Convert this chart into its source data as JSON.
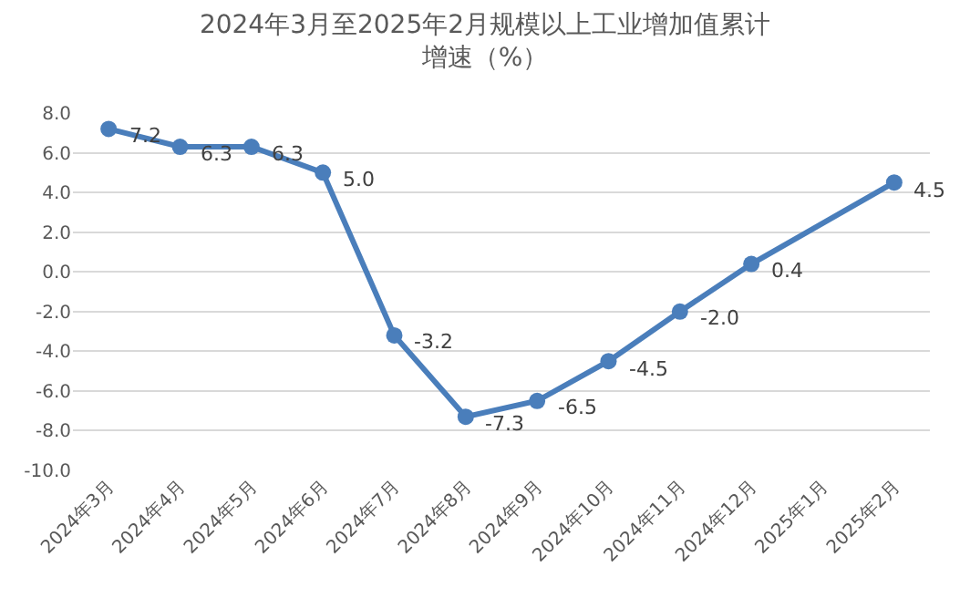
{
  "chart_data": {
    "type": "line",
    "title": "2024年3月至2025年2月规模以上工业增加值累计增速（%）",
    "categories": [
      "2024年3月",
      "2024年4月",
      "2024年5月",
      "2024年6月",
      "2024年7月",
      "2024年8月",
      "2024年9月",
      "2024年10月",
      "2024年11月",
      "2024年12月",
      "2025年1月",
      "2025年2月"
    ],
    "series": [
      {
        "color": "#4a7ebb",
        "values": [
          7.2,
          6.3,
          6.3,
          5.0,
          -3.2,
          -7.3,
          -6.5,
          -4.5,
          -2.0,
          0.4,
          null,
          4.5
        ],
        "value_labels": [
          "7.2",
          "6.3",
          "6.3",
          "5.0",
          "-3.2",
          "-7.3",
          "-6.5",
          "-4.5",
          "-2.0",
          "0.4",
          null,
          "4.5"
        ]
      }
    ],
    "ylim": [
      -10,
      8
    ],
    "yticks": [
      {
        "value": -10,
        "label": "-10.0"
      },
      {
        "value": -8,
        "label": "-8.0"
      },
      {
        "value": -6,
        "label": "-6.0"
      },
      {
        "value": -4,
        "label": "-4.0"
      },
      {
        "value": -2,
        "label": "-2.0"
      },
      {
        "value": 0,
        "label": "0.0"
      },
      {
        "value": 2,
        "label": "2.0"
      },
      {
        "value": 4,
        "label": "4.0"
      },
      {
        "value": 6,
        "label": "6.0"
      },
      {
        "value": 8,
        "label": "8.0"
      }
    ],
    "grid": "y",
    "marker": "circle",
    "line_style": "solid"
  }
}
